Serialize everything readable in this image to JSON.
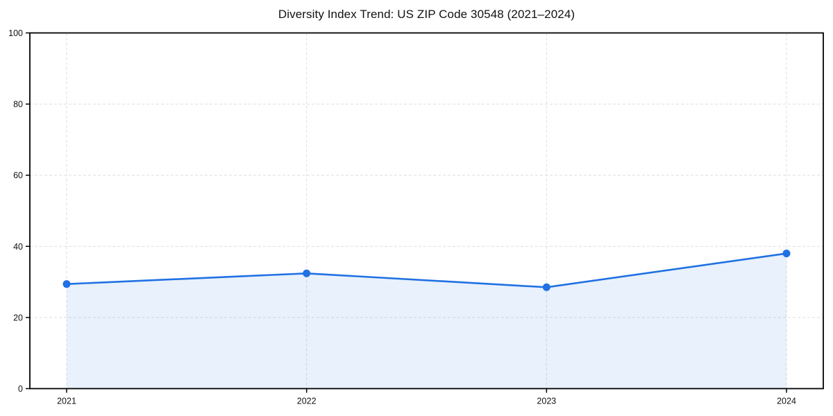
{
  "chart_data": {
    "type": "area",
    "title": "Diversity Index Trend: US ZIP Code 30548 (2021–2024)",
    "x": [
      "2021",
      "2022",
      "2023",
      "2024"
    ],
    "values": [
      29.4,
      32.4,
      28.5,
      38.0
    ],
    "xlabel": "",
    "ylabel": "",
    "ylim": [
      0,
      100
    ],
    "yticks": [
      0,
      20,
      40,
      60,
      80,
      100
    ],
    "grid": true,
    "legend": "none",
    "line_color": "#2071e3",
    "fill_color": "rgba(32, 113, 227, 0.10)",
    "grid_color": "#dedede",
    "axis_color": "#000000",
    "tick_label_color": "#111111"
  }
}
